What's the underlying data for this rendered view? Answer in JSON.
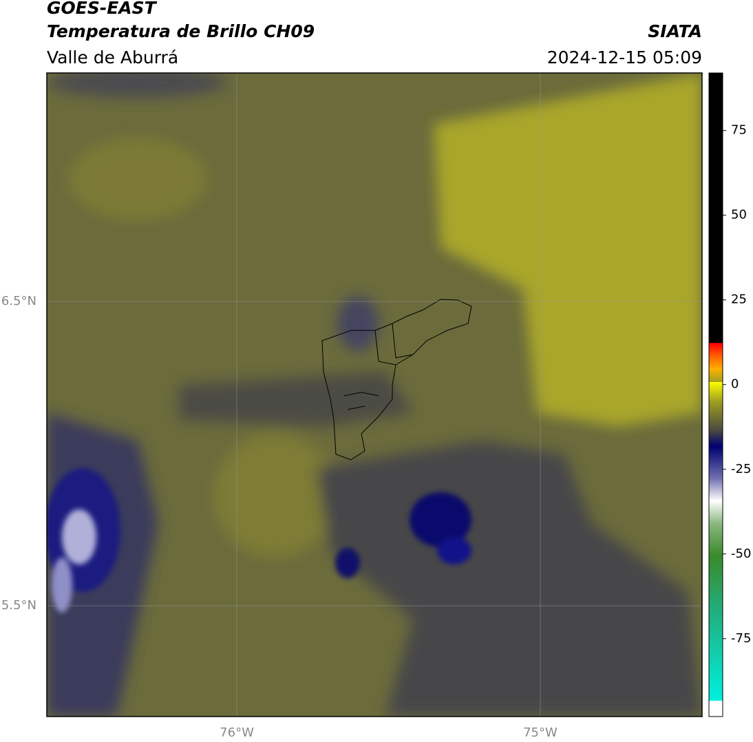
{
  "header": {
    "title": "GOES-EAST",
    "subtitle": "Temperatura de Brillo CH09",
    "region": "Valle de Aburrá",
    "source": "SIATA",
    "datetime": "2024-12-15 05:09"
  },
  "map": {
    "xlim": [
      -76.626,
      -74.467
    ],
    "ylim": [
      5.136,
      7.251
    ],
    "grid": true,
    "xticks": [
      {
        "value": -76,
        "label": "76°W"
      },
      {
        "value": -75,
        "label": "75°W"
      }
    ],
    "yticks": [
      {
        "value": 6.5,
        "label": "6.5°N"
      },
      {
        "value": 5.5,
        "label": "5.5°N"
      }
    ]
  },
  "colorbar": {
    "lim": [
      -98,
      92
    ],
    "ticks": [
      75,
      50,
      25,
      0,
      -25,
      -50,
      -75
    ]
  }
}
